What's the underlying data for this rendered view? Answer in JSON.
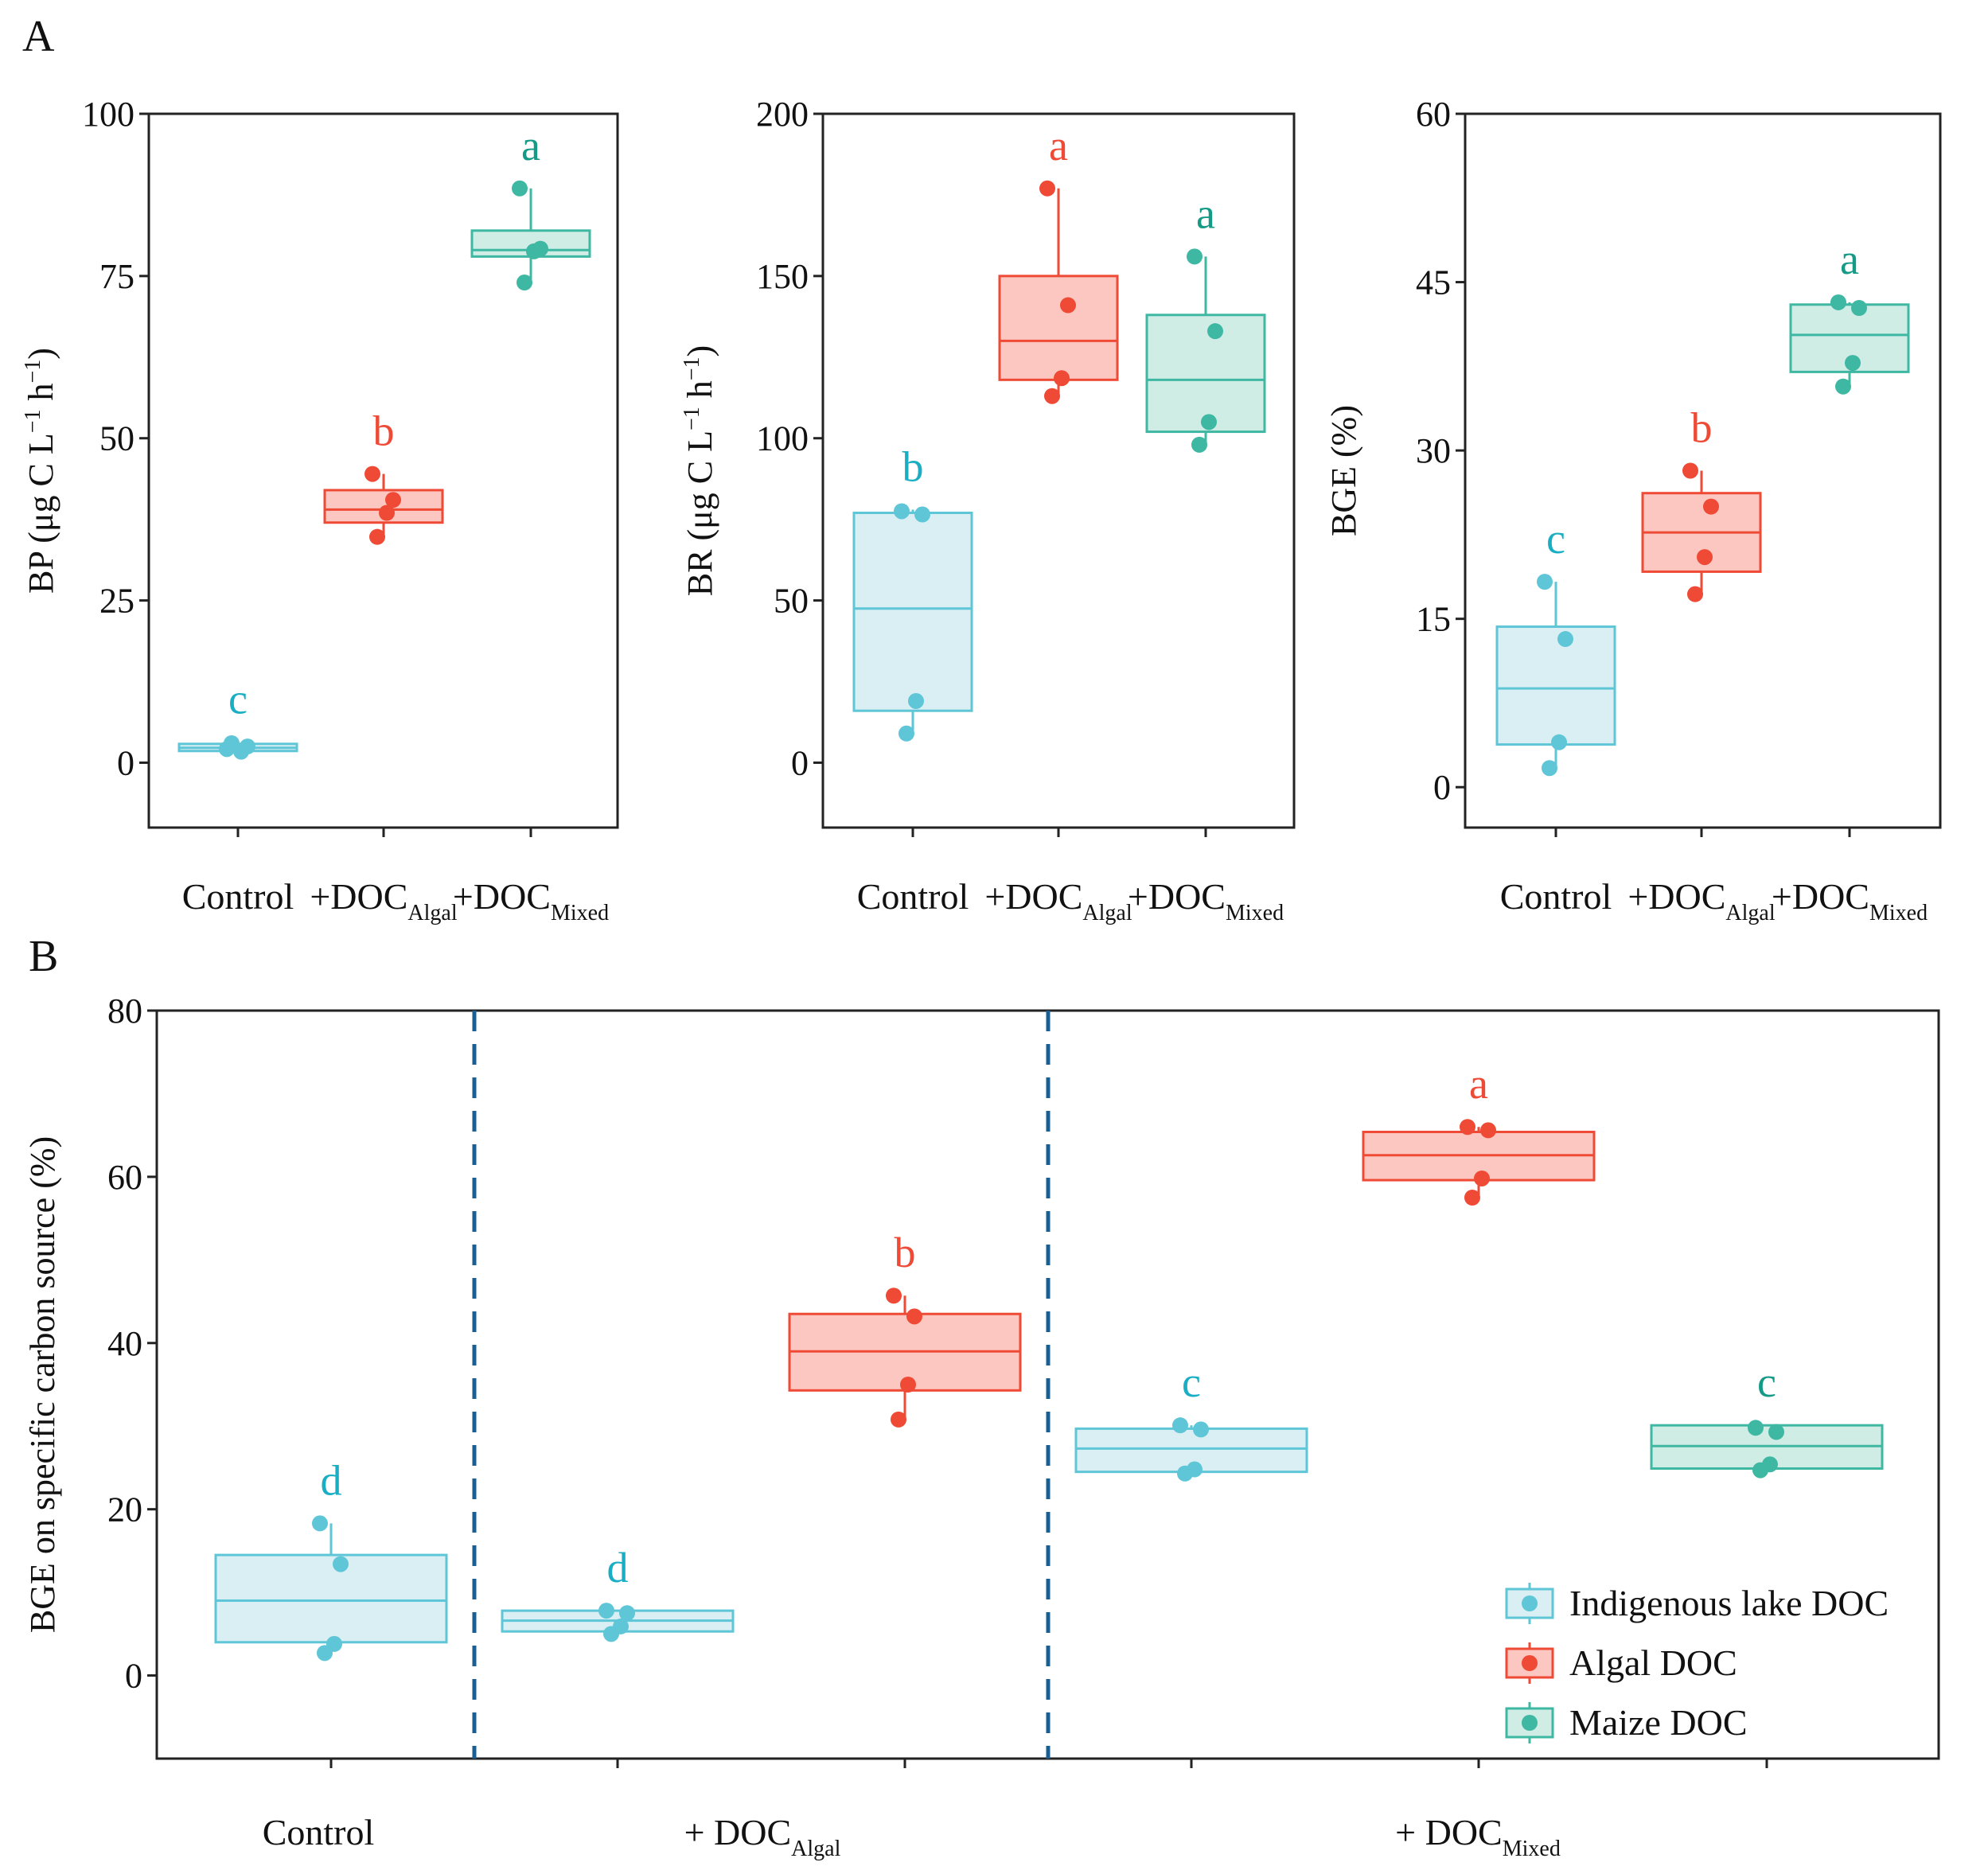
{
  "colors": {
    "indigenous": "#5ec6d6",
    "algal": "#ef4a36",
    "maize": "#3eb8a2",
    "divider": "#1a5f93",
    "axis": "#222222"
  },
  "panel_labels": {
    "a": "A",
    "b": "B"
  },
  "chart_data": [
    {
      "type": "box",
      "panel": "A1",
      "ylabel": {
        "main": "BP (μg C L",
        "sup1": "−1",
        "mid": " h",
        "sup2": "−1",
        "end": ")"
      },
      "ylim": [
        -10,
        100
      ],
      "yticks": [
        0,
        25,
        50,
        75,
        100
      ],
      "groups": [
        {
          "label": "Control",
          "sub": "",
          "color": "indigenous",
          "q1": 1.8,
          "median": 2.3,
          "q3": 2.9,
          "wlo": 1.6,
          "whi": 3.2,
          "points": [
            2.1,
            2.5,
            1.7,
            3.0
          ],
          "letter": "c"
        },
        {
          "label": "+DOC",
          "sub": "Algal",
          "color": "algal",
          "q1": 37,
          "median": 39,
          "q3": 42,
          "wlo": 34.8,
          "whi": 44.5,
          "points": [
            44.5,
            40.5,
            38.5,
            34.8
          ],
          "letter": "b"
        },
        {
          "label": "+DOC",
          "sub": "Mixed",
          "color": "maize",
          "q1": 78,
          "median": 79,
          "q3": 82,
          "wlo": 74,
          "whi": 88.5,
          "points": [
            88.5,
            79.2,
            78.8,
            74.0
          ],
          "letter": "a"
        }
      ]
    },
    {
      "type": "box",
      "panel": "A2",
      "ylabel": {
        "main": "BR (μg C L",
        "sup1": "−1",
        "mid": " h",
        "sup2": "−1",
        "end": ")"
      },
      "ylim": [
        -20,
        200
      ],
      "yticks": [
        0,
        50,
        100,
        150,
        200
      ],
      "groups": [
        {
          "label": "Control",
          "sub": "",
          "color": "indigenous",
          "q1": 16,
          "median": 47.5,
          "q3": 77,
          "wlo": 9,
          "whi": 78,
          "points": [
            77.5,
            76.5,
            19,
            9
          ],
          "letter": "b"
        },
        {
          "label": "+DOC",
          "sub": "Algal",
          "color": "algal",
          "q1": 118,
          "median": 130,
          "q3": 150,
          "wlo": 113,
          "whi": 177,
          "points": [
            177,
            141,
            118.5,
            113
          ],
          "letter": "a"
        },
        {
          "label": "+DOC",
          "sub": "Mixed",
          "color": "maize",
          "q1": 102,
          "median": 118,
          "q3": 138,
          "wlo": 98,
          "whi": 156,
          "points": [
            156,
            133,
            105,
            98
          ],
          "letter": "a"
        }
      ]
    },
    {
      "type": "box",
      "panel": "A3",
      "ylabel": {
        "main": "BGE (%)",
        "sup1": "",
        "mid": "",
        "sup2": "",
        "end": ""
      },
      "ylim": [
        -3.6,
        60
      ],
      "yticks": [
        0,
        15,
        30,
        45,
        60
      ],
      "groups": [
        {
          "label": "Control",
          "sub": "",
          "color": "indigenous",
          "q1": 3.8,
          "median": 8.8,
          "q3": 14.3,
          "wlo": 1.7,
          "whi": 18.3,
          "points": [
            18.3,
            13.2,
            4.0,
            1.7
          ],
          "letter": "c"
        },
        {
          "label": "+DOC",
          "sub": "Algal",
          "color": "algal",
          "q1": 19.2,
          "median": 22.7,
          "q3": 26.2,
          "wlo": 17.2,
          "whi": 28.2,
          "points": [
            28.2,
            25.0,
            20.5,
            17.2
          ],
          "letter": "b"
        },
        {
          "label": "+DOC",
          "sub": "Mixed",
          "color": "maize",
          "q1": 37.0,
          "median": 40.3,
          "q3": 43.0,
          "wlo": 35.7,
          "whi": 43.2,
          "points": [
            43.2,
            42.7,
            37.8,
            35.7
          ],
          "letter": "a"
        }
      ]
    },
    {
      "type": "box",
      "panel": "B",
      "ylabel": {
        "main": "BGE on specific carbon source  (%)",
        "sup1": "",
        "mid": "",
        "sup2": "",
        "end": ""
      },
      "ylim": [
        -10,
        80
      ],
      "yticks": [
        0,
        20,
        40,
        60,
        80
      ],
      "categories": [
        {
          "label": "Control",
          "sub": ""
        },
        {
          "label": "+ DOC",
          "sub": "Algal"
        },
        {
          "label": "+ DOC",
          "sub": "Mixed"
        }
      ],
      "groups": [
        {
          "series": "Indigenous lake DOC",
          "color": "indigenous",
          "q1": 4,
          "median": 9,
          "q3": 14.5,
          "wlo": 2.7,
          "whi": 18.3,
          "points": [
            18.3,
            13.4,
            3.8,
            2.7
          ],
          "letter": "d"
        },
        {
          "series": "Indigenous lake DOC",
          "color": "indigenous",
          "q1": 5.3,
          "median": 6.6,
          "q3": 7.8,
          "wlo": 5.0,
          "whi": 7.8,
          "points": [
            7.8,
            7.5,
            5.9,
            5.0
          ],
          "letter": "d"
        },
        {
          "series": "Algal DOC",
          "color": "algal",
          "q1": 34.3,
          "median": 39,
          "q3": 43.5,
          "wlo": 30.8,
          "whi": 45.7,
          "points": [
            45.7,
            43.2,
            35.0,
            30.8
          ],
          "letter": "b"
        },
        {
          "series": "Indigenous lake DOC",
          "color": "indigenous",
          "q1": 24.5,
          "median": 27.3,
          "q3": 29.7,
          "wlo": 24.3,
          "whi": 30.1,
          "points": [
            30.1,
            29.6,
            24.8,
            24.3
          ],
          "letter": "c"
        },
        {
          "series": "Algal DOC",
          "color": "algal",
          "q1": 59.6,
          "median": 62.6,
          "q3": 65.4,
          "wlo": 57.5,
          "whi": 66.0,
          "points": [
            66.0,
            65.6,
            59.8,
            57.5
          ],
          "letter": "a"
        },
        {
          "series": "Maize DOC",
          "color": "maize",
          "q1": 24.9,
          "median": 27.6,
          "q3": 30.1,
          "wlo": 24.7,
          "whi": 30.1,
          "points": [
            29.8,
            29.3,
            25.4,
            24.7
          ],
          "letter": "c"
        }
      ],
      "legend": [
        {
          "label": "Indigenous lake DOC",
          "color": "indigenous"
        },
        {
          "label": "Algal DOC",
          "color": "algal"
        },
        {
          "label": "Maize DOC",
          "color": "maize"
        }
      ]
    }
  ]
}
